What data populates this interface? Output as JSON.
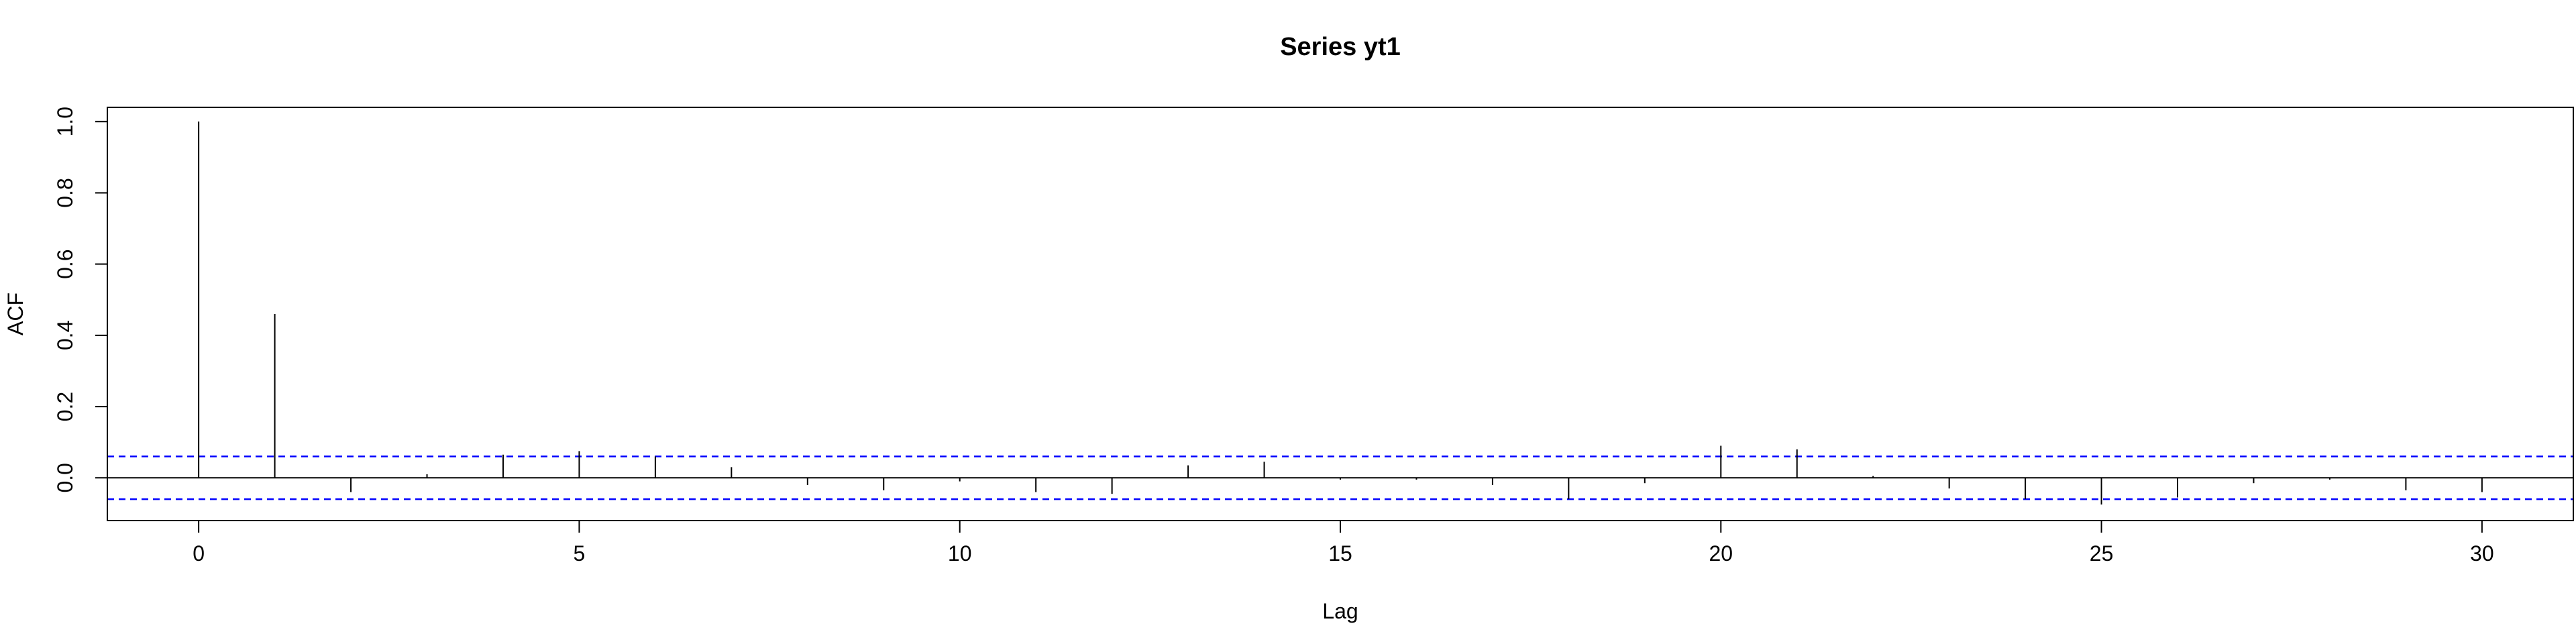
{
  "chart_data": {
    "type": "bar",
    "title": "Series  yt1",
    "xlabel": "Lag",
    "ylabel": "ACF",
    "xlim": [
      -1.2,
      31.2
    ],
    "ylim": [
      -0.12,
      1.04
    ],
    "x_ticks": [
      0,
      5,
      10,
      15,
      20,
      25,
      30
    ],
    "y_ticks": [
      0.0,
      0.2,
      0.4,
      0.6,
      0.8,
      1.0
    ],
    "y_tick_labels": [
      "0.0",
      "0.2",
      "0.4",
      "0.6",
      "0.8",
      "1.0"
    ],
    "series": [
      {
        "lags": [
          0,
          1,
          2,
          3,
          4,
          5,
          6,
          7,
          8,
          9,
          10,
          11,
          12,
          13,
          14,
          15,
          16,
          17,
          18,
          19,
          20,
          21,
          22,
          23,
          24,
          25,
          26,
          27,
          28,
          29,
          30
        ],
        "values": [
          1.0,
          0.46,
          -0.04,
          0.01,
          0.065,
          0.075,
          0.06,
          0.03,
          -0.02,
          -0.035,
          -0.01,
          -0.04,
          -0.045,
          0.035,
          0.045,
          -0.005,
          -0.005,
          -0.02,
          -0.06,
          -0.015,
          0.09,
          0.08,
          0.005,
          -0.03,
          -0.06,
          -0.075,
          -0.055,
          -0.015,
          -0.005,
          -0.035,
          -0.04
        ]
      }
    ],
    "confidence_band": 0.06,
    "zero_line": true,
    "grid": false,
    "legend": "none",
    "colors": {
      "bars": "#000000",
      "axes": "#000000",
      "confidence": "#0000FF"
    }
  }
}
